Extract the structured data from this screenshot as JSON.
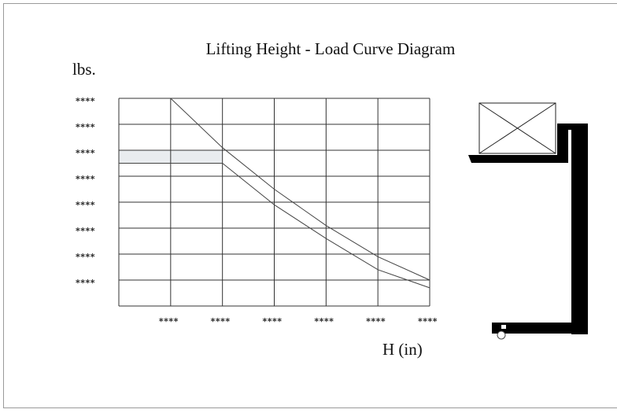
{
  "chart_data": {
    "type": "line",
    "title": "Lifting Height - Load Curve Diagram",
    "ylabel": "lbs.",
    "xlabel": "H (in)",
    "x_tick_labels": [
      "****",
      "****",
      "****",
      "****",
      "****",
      "****"
    ],
    "y_tick_labels": [
      "****",
      "****",
      "****",
      "****",
      "****",
      "****",
      "****",
      "****"
    ],
    "xlim": [
      0,
      6
    ],
    "ylim": [
      0,
      8
    ],
    "grid": true,
    "series": [
      {
        "x": [
          1,
          2,
          3,
          4,
          5,
          6
        ],
        "values": [
          8,
          6.1,
          4.5,
          3.1,
          1.9,
          1.0
        ]
      },
      {
        "x": [
          0,
          2,
          3,
          4,
          5,
          6
        ],
        "values": [
          5.5,
          5.5,
          3.9,
          2.6,
          1.4,
          0.7
        ]
      }
    ],
    "highlight_band": {
      "y_from": 5.5,
      "y_to": 6.0,
      "x_from": 0,
      "x_to": 2
    }
  }
}
